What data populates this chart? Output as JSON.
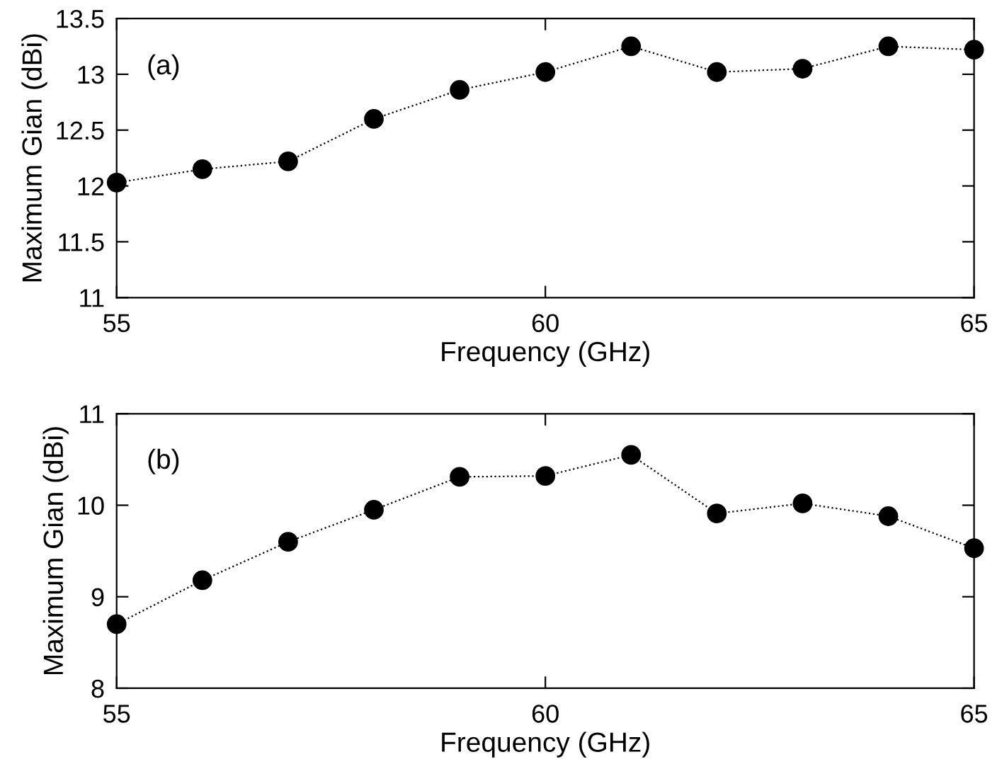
{
  "chart_data": [
    {
      "type": "line",
      "xlabel": "Frequency (GHz)",
      "ylabel": "Maximum Gian (dBi)",
      "annotations": [
        "(a)"
      ],
      "x": [
        55,
        56,
        57,
        58,
        59,
        60,
        61,
        62,
        63,
        64,
        65
      ],
      "series": [
        {
          "color": "#000000",
          "values": [
            12.03,
            12.15,
            12.22,
            12.6,
            12.86,
            13.02,
            13.25,
            13.02,
            13.05,
            13.25,
            13.22
          ]
        }
      ],
      "marker": "circle",
      "line_style": "dotted",
      "xlim": [
        55,
        65
      ],
      "xticks": [
        55,
        60,
        65
      ],
      "ylim": [
        11,
        13.5
      ],
      "yticks": [
        11,
        11.5,
        12,
        12.5,
        13,
        13.5
      ],
      "grid": false
    },
    {
      "type": "line",
      "xlabel": "Frequency (GHz)",
      "ylabel": "Maximum Gian (dBi)",
      "annotations": [
        "(b)"
      ],
      "x": [
        55,
        56,
        57,
        58,
        59,
        60,
        61,
        62,
        63,
        64,
        65
      ],
      "series": [
        {
          "color": "#000000",
          "values": [
            8.7,
            9.18,
            9.6,
            9.95,
            10.31,
            10.32,
            10.55,
            9.91,
            10.02,
            9.88,
            9.53
          ]
        }
      ],
      "marker": "circle",
      "line_style": "dotted",
      "xlim": [
        55,
        65
      ],
      "xticks": [
        55,
        60,
        65
      ],
      "ylim": [
        8,
        11
      ],
      "yticks": [
        8,
        9,
        10,
        11
      ],
      "grid": false
    }
  ]
}
